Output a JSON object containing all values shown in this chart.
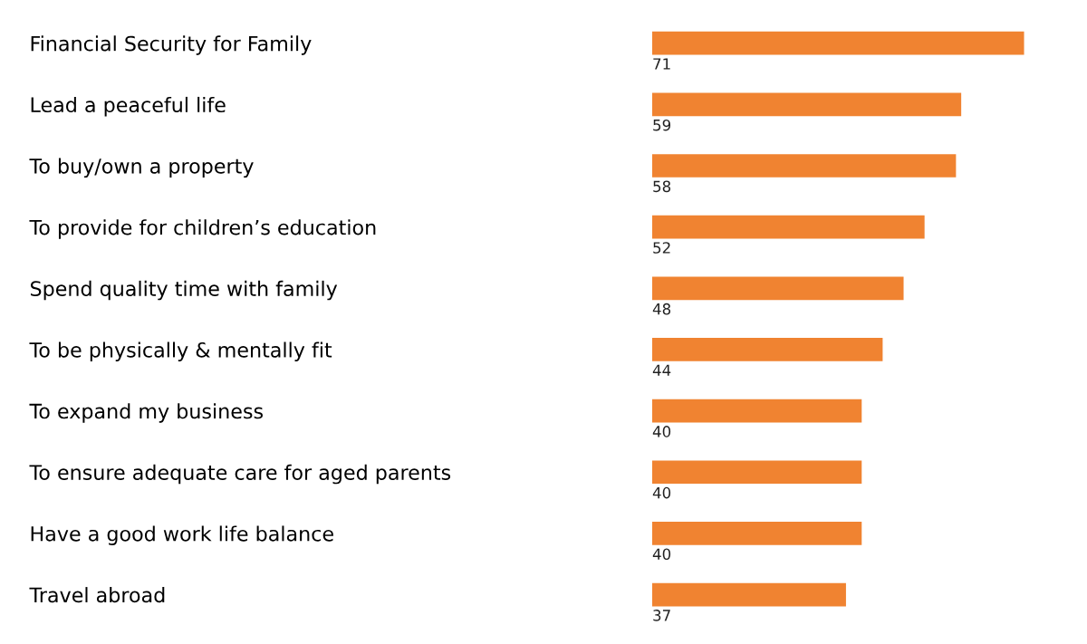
{
  "chart_data": {
    "type": "bar",
    "orientation": "horizontal",
    "categories": [
      "Financial Security for Family",
      "Lead a peaceful life",
      "To buy/own a property",
      "To provide for children’s education",
      "Spend quality time with family",
      "To be physically & mentally fit",
      "To expand my business",
      "To ensure adequate care for aged parents",
      "Have a good work life balance",
      "Travel abroad"
    ],
    "values": [
      71,
      59,
      58,
      52,
      48,
      44,
      40,
      40,
      40,
      37
    ],
    "color": "#f08331",
    "data_labels": true,
    "grid": false,
    "legend": false
  }
}
